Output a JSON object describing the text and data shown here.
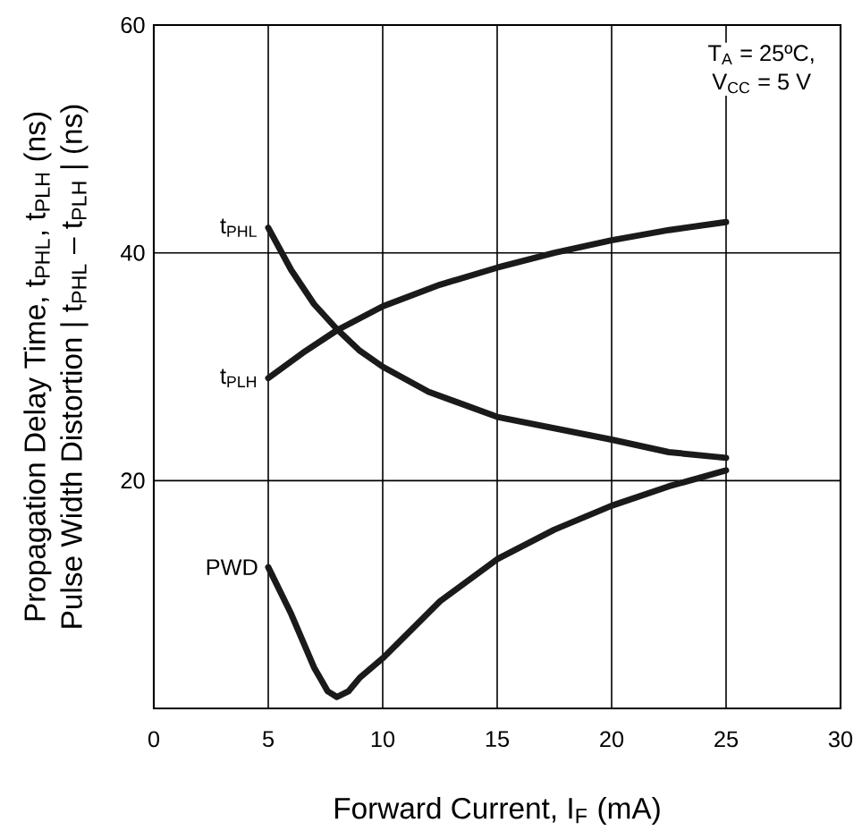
{
  "chart_data": {
    "type": "line",
    "xlabel": "Forward Current, I$_{F}$ (mA)",
    "ylabel": "Propagation Delay Time, t$_{PHL}$, t$_{PLH}$  (ns)",
    "annotations": [
      "T$_{A}$ = 25ºC,",
      "V$_{CC}$ = 5 V",
      "Pulse Width Distortion | t$_{PHL}$ – t$_{PLH}$ | (ns)"
    ],
    "xlim": [
      0,
      30
    ],
    "xticks": [
      0,
      5,
      10,
      15,
      20,
      25,
      30
    ],
    "ylim": [
      0,
      60
    ],
    "yticks": [
      20,
      40,
      60
    ],
    "grid": true,
    "legend": false,
    "marker": "none",
    "line_style": "solid",
    "series": [
      {
        "name": "t$_{PHL}$",
        "color": "#1a1a1a",
        "x": [
          5,
          6,
          7,
          8,
          9,
          10,
          12,
          15,
          17.5,
          20,
          22.5,
          25
        ],
        "values": [
          42.2,
          38.5,
          35.5,
          33.3,
          31.4,
          30,
          27.8,
          25.6,
          24.6,
          23.6,
          22.5,
          22
        ]
      },
      {
        "name": "t$_{PLH}$",
        "color": "#1a1a1a",
        "x": [
          5,
          6.5,
          8,
          10,
          12.5,
          15,
          17.5,
          20,
          22.5,
          25
        ],
        "values": [
          29,
          31.2,
          33.2,
          35.3,
          37.2,
          38.7,
          40,
          41.1,
          42,
          42.7
        ]
      },
      {
        "name": "PWD",
        "color": "#1a1a1a",
        "x": [
          5,
          6,
          7,
          7.6,
          8,
          8.5,
          9,
          10,
          12.5,
          15,
          17.5,
          20,
          22.5,
          25
        ],
        "values": [
          12.4,
          8.3,
          3.6,
          1.5,
          1,
          1.5,
          2.7,
          4.4,
          9.4,
          13.1,
          15.7,
          17.8,
          19.5,
          20.9
        ]
      }
    ]
  }
}
